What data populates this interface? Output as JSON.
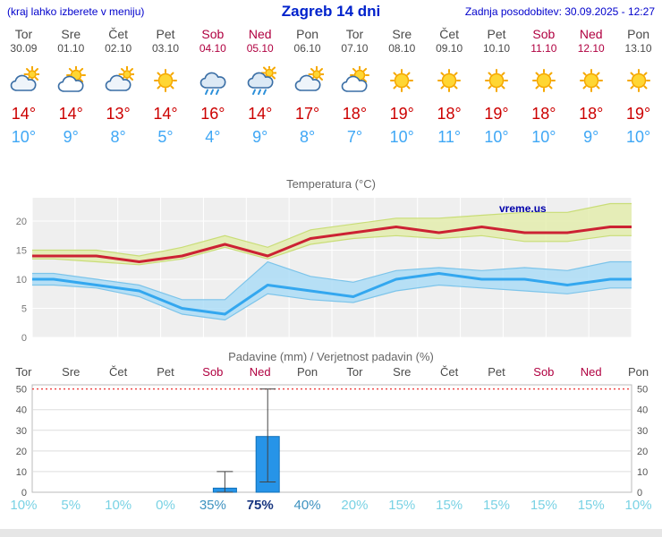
{
  "header": {
    "menu_hint": "(kraj lahko izberete v meniju)",
    "title": "Zagreb 14 dni",
    "updated": "Zadnja posodobitev: 30.09.2025 - 12:27"
  },
  "colors": {
    "header_blue": "#0000cc",
    "weekday_text": "#4a4a4a",
    "weekend_text": "#b00040",
    "temp_max_text": "#cc0000",
    "temp_min_text": "#3fa7f5",
    "prob_low": "#79d2e4",
    "prob_mid": "#3f93c0",
    "prob_high": "#17357f",
    "limit_line": "#ee3333"
  },
  "forecast_strip": {
    "days": [
      {
        "name": "Tor",
        "date": "30.09",
        "weekend": false,
        "icon": "mostly-cloudy",
        "tmax": "14°",
        "tmin": "10°"
      },
      {
        "name": "Sre",
        "date": "01.10",
        "weekend": false,
        "icon": "partly-cloudy",
        "tmax": "14°",
        "tmin": "9°"
      },
      {
        "name": "Čet",
        "date": "02.10",
        "weekend": false,
        "icon": "mostly-cloudy",
        "tmax": "13°",
        "tmin": "8°"
      },
      {
        "name": "Pet",
        "date": "03.10",
        "weekend": false,
        "icon": "sunny",
        "tmax": "14°",
        "tmin": "5°"
      },
      {
        "name": "Sob",
        "date": "04.10",
        "weekend": true,
        "icon": "rain",
        "tmax": "16°",
        "tmin": "4°"
      },
      {
        "name": "Ned",
        "date": "05.10",
        "weekend": true,
        "icon": "sun-rain",
        "tmax": "14°",
        "tmin": "9°"
      },
      {
        "name": "Pon",
        "date": "06.10",
        "weekend": false,
        "icon": "mostly-cloudy",
        "tmax": "17°",
        "tmin": "8°"
      },
      {
        "name": "Tor",
        "date": "07.10",
        "weekend": false,
        "icon": "partly-cloudy",
        "tmax": "18°",
        "tmin": "7°"
      },
      {
        "name": "Sre",
        "date": "08.10",
        "weekend": false,
        "icon": "sunny",
        "tmax": "19°",
        "tmin": "10°"
      },
      {
        "name": "Čet",
        "date": "09.10",
        "weekend": false,
        "icon": "sunny",
        "tmax": "18°",
        "tmin": "11°"
      },
      {
        "name": "Pet",
        "date": "10.10",
        "weekend": false,
        "icon": "sunny",
        "tmax": "19°",
        "tmin": "10°"
      },
      {
        "name": "Sob",
        "date": "11.10",
        "weekend": true,
        "icon": "sunny",
        "tmax": "18°",
        "tmin": "10°"
      },
      {
        "name": "Ned",
        "date": "12.10",
        "weekend": true,
        "icon": "sunny",
        "tmax": "18°",
        "tmin": "9°"
      },
      {
        "name": "Pon",
        "date": "13.10",
        "weekend": false,
        "icon": "sunny",
        "tmax": "19°",
        "tmin": "10°"
      }
    ]
  },
  "chart_data": [
    {
      "type": "line",
      "title": "Temperatura (°C)",
      "watermark": "vreme.us",
      "categories": [
        "Tor",
        "Sre",
        "Čet",
        "Pet",
        "Sob",
        "Ned",
        "Pon",
        "Tor",
        "Sre",
        "Čet",
        "Pet",
        "Sob",
        "Ned",
        "Pon"
      ],
      "ylim": [
        0,
        24
      ],
      "yticks": [
        0,
        5,
        10,
        15,
        20
      ],
      "grid": true,
      "legend": "none",
      "series": [
        {
          "name": "temp-max",
          "color": "#cc2233",
          "values": [
            14,
            14,
            13,
            14,
            16,
            14,
            17,
            18,
            19,
            18,
            19,
            18,
            18,
            19
          ]
        },
        {
          "name": "temp-min",
          "color": "#33a7ef",
          "values": [
            10,
            9,
            8,
            5,
            4,
            9,
            8,
            7,
            10,
            11,
            10,
            10,
            9,
            10
          ]
        }
      ],
      "bands": [
        {
          "name": "temp-max-range",
          "fill": "#e3edab",
          "edge": "#c9dd77",
          "hi": [
            15,
            15,
            14,
            15.5,
            17.5,
            15.5,
            18.5,
            19.5,
            20.5,
            20.5,
            21,
            21.5,
            21.5,
            23
          ],
          "lo": [
            13.5,
            13,
            12.5,
            13.5,
            15.5,
            13.5,
            16,
            17,
            17.5,
            17,
            17.5,
            16.5,
            16.5,
            17.5
          ]
        },
        {
          "name": "temp-min-range",
          "fill": "#a9dcf7",
          "edge": "#7cc4ea",
          "hi": [
            11,
            10,
            9,
            6.5,
            6.5,
            13,
            10.5,
            9.5,
            11.5,
            12,
            11.5,
            12,
            11.5,
            13
          ],
          "lo": [
            9,
            8.5,
            7,
            4,
            3,
            7.5,
            6.5,
            6,
            8,
            9,
            8.5,
            8,
            7.5,
            8.5
          ]
        }
      ]
    },
    {
      "type": "bar",
      "title": "Padavine (mm) / Verjetnost padavin (%)",
      "categories": [
        "Tor",
        "Sre",
        "Čet",
        "Pet",
        "Sob",
        "Ned",
        "Pon",
        "Tor",
        "Sre",
        "Čet",
        "Pet",
        "Sob",
        "Ned",
        "Pon"
      ],
      "ylim": [
        0,
        52
      ],
      "yticks": [
        0,
        10,
        20,
        30,
        40,
        50
      ],
      "limit_line": 50,
      "bar_fill": "#2694e8",
      "bar_stroke": "#1170b8",
      "values": [
        0,
        0,
        0,
        0,
        2,
        27,
        0,
        0,
        0,
        0,
        0,
        0,
        0,
        0
      ],
      "whisker_hi": [
        null,
        null,
        null,
        null,
        10,
        50,
        null,
        null,
        null,
        null,
        null,
        null,
        null,
        null
      ],
      "whisker_lo": [
        null,
        null,
        null,
        null,
        0,
        5,
        null,
        null,
        null,
        null,
        null,
        null,
        null,
        null
      ],
      "probabilities": [
        "10%",
        "5%",
        "10%",
        "0%",
        "35%",
        "75%",
        "40%",
        "20%",
        "15%",
        "15%",
        "15%",
        "15%",
        "15%",
        "10%"
      ]
    }
  ]
}
